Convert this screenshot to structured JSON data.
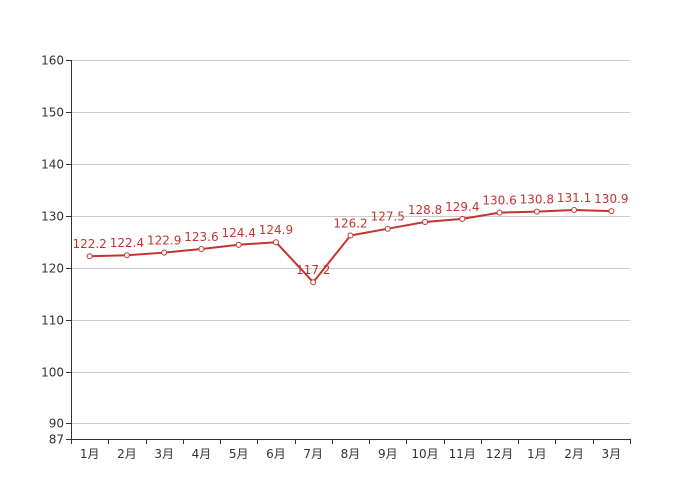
{
  "chart_data": {
    "type": "line",
    "title": "",
    "xlabel": "",
    "ylabel": "",
    "categories": [
      "1月",
      "2月",
      "3月",
      "4月",
      "5月",
      "6月",
      "7月",
      "8月",
      "9月",
      "10月",
      "11月",
      "12月",
      "1月",
      "2月",
      "3月"
    ],
    "series": [
      {
        "values": [
          122.2,
          122.4,
          122.9,
          123.6,
          124.4,
          124.9,
          117.2,
          126.2,
          127.5,
          128.8,
          129.4,
          130.6,
          130.8,
          131.1,
          130.9
        ],
        "color": "#c23531"
      }
    ],
    "y_ticks": [
      87,
      90,
      100,
      110,
      120,
      130,
      140,
      150,
      160
    ],
    "ylim": [
      87,
      160
    ],
    "grid": true,
    "legend": "none"
  }
}
